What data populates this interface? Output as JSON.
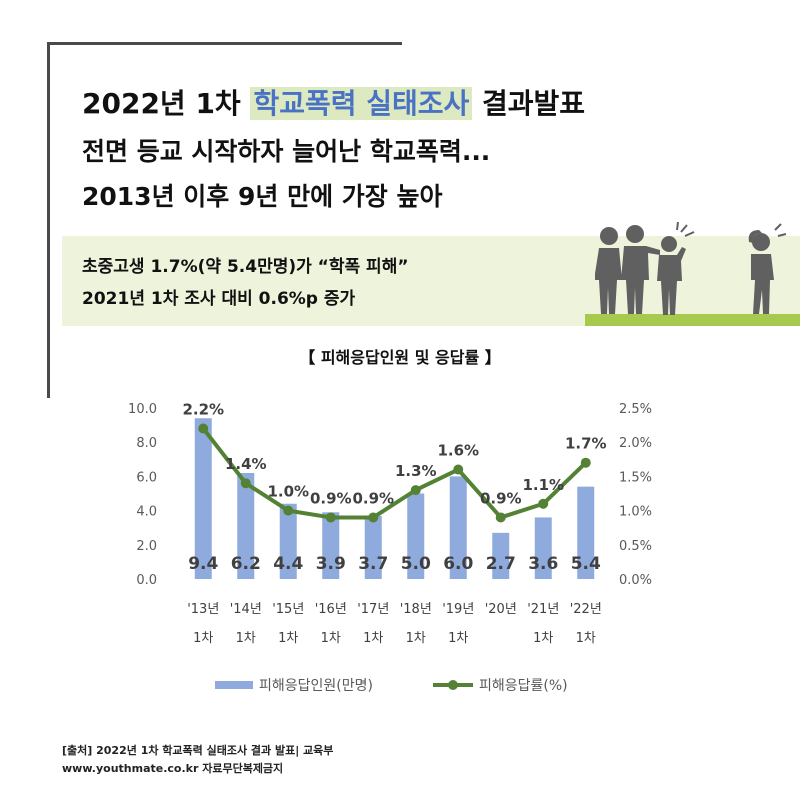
{
  "header": {
    "line1_pre": "2022년 1차 ",
    "line1_accent": "학교폭력 실태조사",
    "line1_post": " 결과발표",
    "line2": "전면 등교 시작하자 늘어난 학교폭력...",
    "line3": "2013년 이후 9년 만에 가장 높아"
  },
  "summary": {
    "line1": "초중고생 1.7%(약 5.4만명)가 “학폭 피해”",
    "line2": "2021년 1차 조사 대비 0.6%p 증가"
  },
  "footer": {
    "line1": "[출처] 2022년 1차 학교폭력 실태조사 결과 발표| 교육부",
    "line2": "www.youthmate.co.kr 자료무단복제금지"
  },
  "colors": {
    "accent_text": "#4a72c4",
    "accent_highlight": "#dde9c0",
    "summary_band": "#eef3dc",
    "ground": "#a6c94e",
    "bar": "#8faadc",
    "line": "#548235",
    "figure": "#606060"
  },
  "chart_data": {
    "type": "bar",
    "title": "【 피해응답인원 및 응답률 】",
    "categories": [
      [
        "'13년",
        "1차"
      ],
      [
        "'14년",
        "1차"
      ],
      [
        "'15년",
        "1차"
      ],
      [
        "'16년",
        "1차"
      ],
      [
        "'17년",
        "1차"
      ],
      [
        "'18년",
        "1차"
      ],
      [
        "'19년",
        "1차"
      ],
      [
        "'20년",
        ""
      ],
      [
        "'21년",
        "1차"
      ],
      [
        "'22년",
        "1차"
      ]
    ],
    "series": [
      {
        "name": "피해응답인원(만명)",
        "type": "bar",
        "axis": "left",
        "values": [
          9.4,
          6.2,
          4.4,
          3.9,
          3.7,
          5.0,
          6.0,
          2.7,
          3.6,
          5.4
        ],
        "labels": [
          "9.4",
          "6.2",
          "4.4",
          "3.9",
          "3.7",
          "5.0",
          "6.0",
          "2.7",
          "3.6",
          "5.4"
        ]
      },
      {
        "name": "피해응답률(%)",
        "type": "line",
        "axis": "right",
        "values": [
          2.2,
          1.4,
          1.0,
          0.9,
          0.9,
          1.3,
          1.6,
          0.9,
          1.1,
          1.7
        ],
        "labels": [
          "2.2%",
          "1.4%",
          "1.0%",
          "0.9%",
          "0.9%",
          "1.3%",
          "1.6%",
          "0.9%",
          "1.1%",
          "1.7%"
        ]
      }
    ],
    "y_left": {
      "range": [
        0,
        10
      ],
      "ticks": [
        "0.0",
        "2.0",
        "4.0",
        "6.0",
        "8.0",
        "10.0"
      ]
    },
    "y_right": {
      "range": [
        0,
        2.5
      ],
      "ticks": [
        "0.0%",
        "0.5%",
        "1.0%",
        "1.5%",
        "2.0%",
        "2.5%"
      ]
    },
    "grid": false,
    "legend_position": "bottom"
  }
}
